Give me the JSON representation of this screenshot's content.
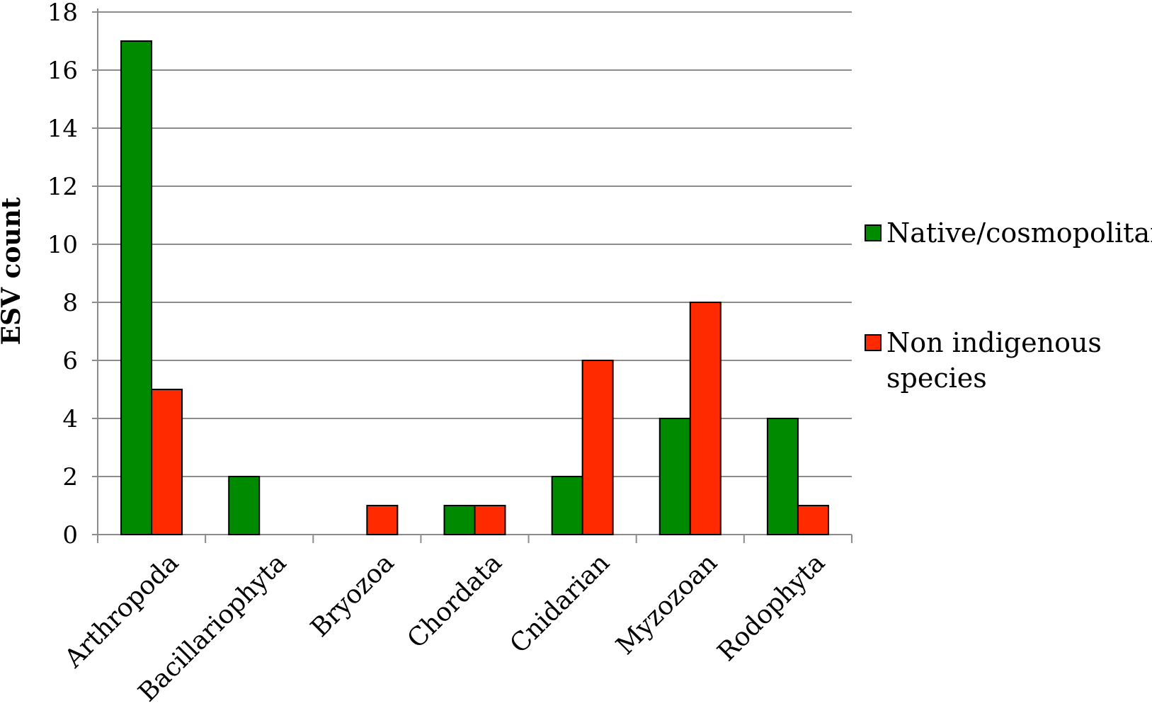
{
  "chart_data": {
    "type": "bar",
    "categories": [
      "Arthropoda",
      "Bacillariophyta",
      "Bryozoa",
      "Chordata",
      "Cnidarian",
      "Myzozoan",
      "Rodophyta"
    ],
    "series": [
      {
        "name": "Native/cosmopolitan",
        "values": [
          17,
          2,
          0,
          1,
          2,
          4,
          4
        ],
        "color": "#008A00"
      },
      {
        "name": "Non indigenous species",
        "values": [
          5,
          0,
          1,
          1,
          6,
          8,
          1
        ],
        "color": "#FF2A00"
      }
    ],
    "title": "",
    "xlabel": "",
    "ylabel": "ESV count",
    "ylim": [
      0,
      18
    ],
    "yticks": [
      "0",
      "2",
      "4",
      "6",
      "8",
      "10",
      "12",
      "14",
      "16",
      "18"
    ],
    "grid": true,
    "legend_position": "right"
  }
}
